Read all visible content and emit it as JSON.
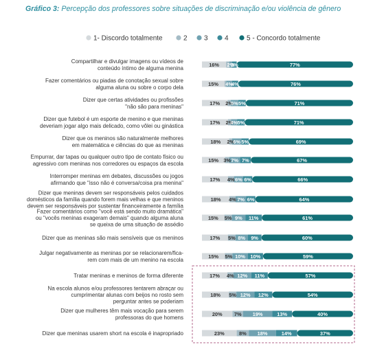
{
  "chart_data": {
    "type": "bar",
    "stacked": "horizontal",
    "title_prefix": "Gráfico 3:",
    "title": "Percepção dos professores sobre situações de discriminação e/ou violência de gênero",
    "legend_position": "top",
    "colors": [
      "#d5dadd",
      "#a5bcc6",
      "#70a2b1",
      "#3b8a99",
      "#126f76"
    ],
    "series": [
      {
        "name": "1- Discordo totalmente"
      },
      {
        "name": "2"
      },
      {
        "name": "3"
      },
      {
        "name": "4"
      },
      {
        "name": "5 - Concordo totalmente"
      }
    ],
    "categories": [
      [
        "Compartilhar e divulgar imagens ou vídeos de",
        "conteúdo íntimo de alguma menina"
      ],
      [
        "Fazer comentários ou piadas de conotação sexual sobre",
        "alguma aluna ou sobre o corpo dela"
      ],
      [
        "Dizer que certas atividades ou profissões",
        "\"não são para meninas\""
      ],
      [
        "Dizer que futebol é um esporte de menino e que meninas",
        "deveriam jogar algo mais delicado, como vôlei ou ginástica"
      ],
      [
        "Dizer que os meninos são naturalmente melhores",
        "em matemática e ciências do que as meninas"
      ],
      [
        "Empurrar, dar tapas ou qualquer outro tipo de contato físico ou",
        "agressivo com meninas nos corredores ou espaços da escola"
      ],
      [
        "Interromper meninas em debates, discussões ou jogos",
        "afirmando que \"isso não é conversa/coisa pra menina\""
      ],
      [
        "Dizer que meninas devem ser responsáveis pelos cuidados",
        "domésticos da família quando forem mais velhas e que meninos",
        "devem ser responsáveis por sustentar financeiramente a família"
      ],
      [
        "Fazer comentários como \"você está sendo muito dramática\"",
        "ou \"vocês meninas exageram demais\" quando alguma aluna",
        "se queixa de uma situação de assédio"
      ],
      [
        "Dizer que as meninas são mais sensíveis que os meninos"
      ],
      [
        "Julgar negativamente as meninas por se relacionarem/fica-",
        "rem com mais de um menino na escola"
      ],
      [
        "Tratar meninas e meninos de forma diferente"
      ],
      [
        "Na escola alunos e/ou professores tentarem abraçar ou",
        "cumprimentar alunas com beijos no rosto sem",
        "perguntar antes se poderiam"
      ],
      [
        "Dizer que mulheres têm mais vocação para serem",
        "professoras do que homens"
      ],
      [
        "Dizer que meninas usarem short na escola é inapropriado"
      ]
    ],
    "values": [
      [
        16,
        2,
        2,
        3,
        77
      ],
      [
        15,
        1,
        4,
        4,
        76
      ],
      [
        17,
        2,
        5,
        5,
        71
      ],
      [
        17,
        2,
        4,
        5,
        71
      ],
      [
        18,
        2,
        6,
        5,
        69
      ],
      [
        15,
        3,
        7,
        7,
        67
      ],
      [
        17,
        4,
        6,
        6,
        66
      ],
      [
        18,
        4,
        7,
        6,
        64
      ],
      [
        15,
        5,
        9,
        11,
        61
      ],
      [
        17,
        5,
        8,
        9,
        60
      ],
      [
        15,
        5,
        10,
        10,
        59
      ],
      [
        17,
        4,
        12,
        11,
        57
      ],
      [
        18,
        5,
        12,
        12,
        54
      ],
      [
        20,
        7,
        19,
        13,
        40
      ],
      [
        23,
        8,
        18,
        14,
        37
      ]
    ],
    "labels": [
      [
        "16%",
        "",
        "2%",
        "3%",
        "77%"
      ],
      [
        "15%",
        "",
        "4%",
        "4%",
        "76%"
      ],
      [
        "17%",
        "2%",
        "5%",
        "5%",
        "71%"
      ],
      [
        "17%",
        "2%",
        "4%",
        "5%",
        "71%"
      ],
      [
        "18%",
        "2%",
        "6%",
        "5%",
        "69%"
      ],
      [
        "15%",
        "3%",
        "7%",
        "7%",
        "67%"
      ],
      [
        "17%",
        "4%",
        "6%",
        "6%",
        "66%"
      ],
      [
        "18%",
        "4%",
        "7%",
        "6%",
        "64%"
      ],
      [
        "15%",
        "5%",
        "9%",
        "11%",
        "61%"
      ],
      [
        "17%",
        "5%",
        "8%",
        "9%",
        "60%"
      ],
      [
        "15%",
        "5%",
        "10%",
        "10%",
        "59%"
      ],
      [
        "17%",
        "4%",
        "12%",
        "11%",
        "57%"
      ],
      [
        "18%",
        "5%",
        "12%",
        "12%",
        "54%"
      ],
      [
        "20%",
        "7%",
        "19%",
        "13%",
        "40%"
      ],
      [
        "23%",
        "8%",
        "18%",
        "14%",
        "37%"
      ]
    ],
    "highlighted_rows": [
      11,
      12,
      13,
      14
    ],
    "xlim": [
      0,
      100
    ]
  }
}
